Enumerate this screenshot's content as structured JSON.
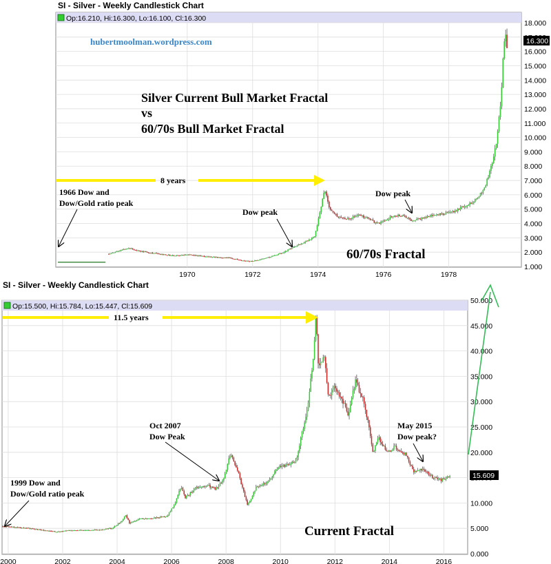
{
  "chart_data": [
    {
      "type": "candlestick",
      "title": "SI - Silver - Weekly Candlestick Chart",
      "ohlc_label": "Op:16.210, Hi:16.300, Lo:16.100, Cl:16.300",
      "watermark": "hubertmoolman.wordpress.com",
      "last_value_label": "16.300",
      "x_ticks": [
        "1970",
        "1972",
        "1974",
        "1976",
        "1978"
      ],
      "y_ticks": [
        "1.000",
        "2.000",
        "3.000",
        "4.000",
        "5.000",
        "6.000",
        "7.000",
        "8.000",
        "9.000",
        "10.000",
        "11.000",
        "12.000",
        "13.000",
        "14.000",
        "15.000",
        "16.000",
        "17.000",
        "18.000"
      ],
      "ylim": [
        1,
        18
      ],
      "xlim": [
        1966.0,
        1980.2
      ],
      "grid": true,
      "series_points": [
        [
          1966.0,
          1.3
        ],
        [
          1967.5,
          1.3
        ],
        [
          1967.5,
          1.8
        ],
        [
          1967.9,
          2.1
        ],
        [
          1968.2,
          2.3
        ],
        [
          1968.5,
          2.1
        ],
        [
          1968.9,
          1.95
        ],
        [
          1969.2,
          1.85
        ],
        [
          1969.6,
          1.75
        ],
        [
          1970.0,
          1.85
        ],
        [
          1970.5,
          1.7
        ],
        [
          1970.9,
          1.65
        ],
        [
          1971.3,
          1.6
        ],
        [
          1971.6,
          1.45
        ],
        [
          1971.9,
          1.35
        ],
        [
          1972.2,
          1.45
        ],
        [
          1972.5,
          1.65
        ],
        [
          1972.9,
          1.95
        ],
        [
          1973.2,
          2.3
        ],
        [
          1973.6,
          2.7
        ],
        [
          1973.9,
          3.1
        ],
        [
          1974.1,
          5.2
        ],
        [
          1974.2,
          6.5
        ],
        [
          1974.35,
          5.0
        ],
        [
          1974.6,
          4.5
        ],
        [
          1974.9,
          4.3
        ],
        [
          1975.2,
          4.6
        ],
        [
          1975.5,
          4.4
        ],
        [
          1975.8,
          4.0
        ],
        [
          1976.1,
          4.2
        ],
        [
          1976.3,
          4.6
        ],
        [
          1976.6,
          4.5
        ],
        [
          1976.9,
          4.2
        ],
        [
          1977.2,
          4.4
        ],
        [
          1977.6,
          4.6
        ],
        [
          1977.9,
          4.7
        ],
        [
          1978.2,
          4.9
        ],
        [
          1978.6,
          5.3
        ],
        [
          1978.9,
          5.8
        ],
        [
          1979.1,
          6.5
        ],
        [
          1979.3,
          8.0
        ],
        [
          1979.45,
          9.5
        ],
        [
          1979.6,
          12.5
        ],
        [
          1979.67,
          16.0
        ],
        [
          1979.72,
          17.6
        ],
        [
          1979.78,
          16.3
        ]
      ],
      "annotations": [
        {
          "id": "title1",
          "text": "Silver Current Bull Market Fractal"
        },
        {
          "id": "title2",
          "text": "vs"
        },
        {
          "id": "title3",
          "text": "60/70s Bull Market Fractal"
        },
        {
          "id": "duration",
          "text": "8 years"
        },
        {
          "id": "peak1966_l1",
          "text": "1966 Dow and"
        },
        {
          "id": "peak1966_l2",
          "text": "Dow/Gold ratio peak"
        },
        {
          "id": "dowpeak1",
          "text": "Dow peak"
        },
        {
          "id": "dowpeak2",
          "text": "Dow peak"
        },
        {
          "id": "fractal",
          "text": "60/70s Fractal"
        }
      ]
    },
    {
      "type": "candlestick",
      "title": "SI - Silver - Weekly Candlestick Chart",
      "ohlc_label": "Op:15.500, Hi:15.784, Lo:15.447, Cl:15.609",
      "last_value_label": "15.609",
      "x_ticks": [
        "2000",
        "2002",
        "2004",
        "2006",
        "2008",
        "2010",
        "2012",
        "2014",
        "2016"
      ],
      "y_ticks": [
        "0.000",
        "5.000",
        "10.000",
        "15.000",
        "20.000",
        "25.000",
        "30.000",
        "35.000",
        "40.000",
        "45.000",
        "50.000"
      ],
      "ylim": [
        0,
        50
      ],
      "xlim": [
        1999.8,
        2016.85
      ],
      "grid": true,
      "series_points": [
        [
          1999.8,
          5.4
        ],
        [
          2000.3,
          5.2
        ],
        [
          2000.8,
          5.0
        ],
        [
          2001.3,
          4.6
        ],
        [
          2001.8,
          4.3
        ],
        [
          2002.3,
          4.6
        ],
        [
          2002.8,
          4.6
        ],
        [
          2003.3,
          4.7
        ],
        [
          2003.8,
          5.0
        ],
        [
          2004.2,
          6.5
        ],
        [
          2004.3,
          7.8
        ],
        [
          2004.45,
          6.0
        ],
        [
          2004.8,
          6.8
        ],
        [
          2005.3,
          7.0
        ],
        [
          2005.8,
          7.3
        ],
        [
          2006.1,
          9.5
        ],
        [
          2006.35,
          13.5
        ],
        [
          2006.5,
          11.0
        ],
        [
          2006.9,
          13.0
        ],
        [
          2007.3,
          13.5
        ],
        [
          2007.6,
          12.8
        ],
        [
          2007.9,
          14.5
        ],
        [
          2008.15,
          19.5
        ],
        [
          2008.4,
          17.0
        ],
        [
          2008.6,
          13.0
        ],
        [
          2008.8,
          9.5
        ],
        [
          2009.1,
          13.0
        ],
        [
          2009.5,
          14.0
        ],
        [
          2009.9,
          17.0
        ],
        [
          2010.3,
          17.5
        ],
        [
          2010.6,
          18.5
        ],
        [
          2010.8,
          24.0
        ],
        [
          2011.0,
          29.0
        ],
        [
          2011.2,
          38.0
        ],
        [
          2011.31,
          48.0
        ],
        [
          2011.4,
          36.0
        ],
        [
          2011.6,
          40.0
        ],
        [
          2011.75,
          31.0
        ],
        [
          2012.0,
          33.0
        ],
        [
          2012.3,
          30.0
        ],
        [
          2012.5,
          27.5
        ],
        [
          2012.75,
          34.0
        ],
        [
          2013.0,
          31.0
        ],
        [
          2013.25,
          25.0
        ],
        [
          2013.4,
          20.0
        ],
        [
          2013.6,
          23.0
        ],
        [
          2013.9,
          20.0
        ],
        [
          2014.2,
          21.0
        ],
        [
          2014.6,
          19.5
        ],
        [
          2014.9,
          16.0
        ],
        [
          2015.1,
          16.5
        ],
        [
          2015.3,
          16.5
        ],
        [
          2015.6,
          15.0
        ],
        [
          2015.9,
          14.5
        ],
        [
          2016.1,
          15.0
        ],
        [
          2016.22,
          15.6
        ]
      ],
      "annotations": [
        {
          "id": "duration",
          "text": "11.5 years"
        },
        {
          "id": "peak1999_l1",
          "text": "1999 Dow and"
        },
        {
          "id": "peak1999_l2",
          "text": "Dow/Gold ratio peak"
        },
        {
          "id": "oct2007_l1",
          "text": "Oct 2007"
        },
        {
          "id": "oct2007_l2",
          "text": "Dow Peak"
        },
        {
          "id": "may2015_l1",
          "text": "May 2015"
        },
        {
          "id": "may2015_l2",
          "text": "Dow peak?"
        },
        {
          "id": "fractal",
          "text": "Current Fractal"
        }
      ]
    }
  ],
  "colors": {
    "up": "#33cc33",
    "down": "#cc2222",
    "arrow_yellow": "#ffee00",
    "arrow_green": "#33bb55",
    "header_band": "#dcdcf4",
    "grid": "#dddddd",
    "last_label_bg": "#000000",
    "legend_marker": "#33cc33"
  }
}
